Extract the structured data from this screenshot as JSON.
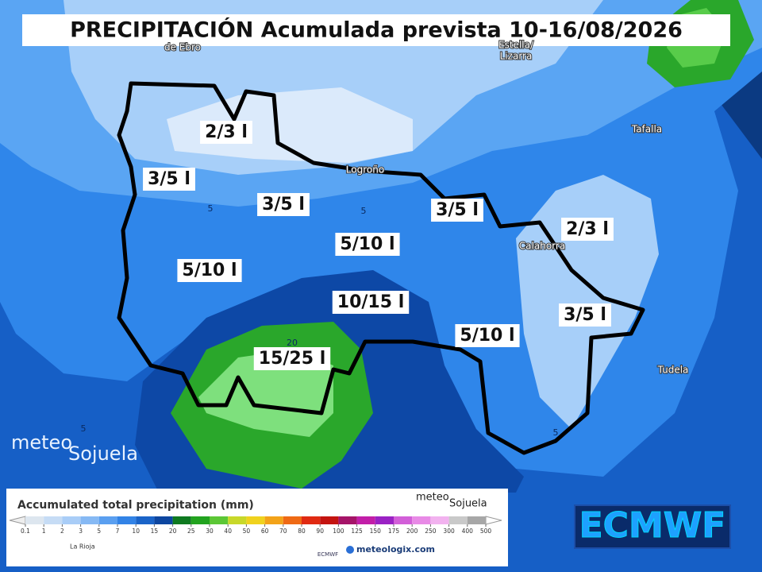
{
  "title": "PRECIPITACIÓN Acumulada prevista 10-16/08/2026",
  "places": [
    "de Ebro",
    "Estella/",
    "Lizarra",
    "Tafalla",
    "Logroño",
    "Calahorra",
    "Tudela"
  ],
  "zone_labels": [
    "2/3 l",
    "3/5 l",
    "3/5 l",
    "3/5 l",
    "2/3 l",
    "5/10 l",
    "5/10 l",
    "10/15 l",
    "5/10 l",
    "15/25 l",
    "3/5 l"
  ],
  "contour_labels": [
    5,
    5,
    20,
    5,
    5
  ],
  "brand": {
    "part1": "meteo",
    "part2": "Sojuela"
  },
  "model": "ECMWF",
  "legend": {
    "title": "Accumulated total precipitation (mm)",
    "ticks": [
      0.1,
      1,
      2,
      3,
      5,
      7,
      10,
      15,
      20,
      25,
      30,
      40,
      50,
      60,
      70,
      80,
      90,
      100,
      125,
      150,
      175,
      200,
      250,
      300,
      400,
      500
    ],
    "colors": [
      "#dde6ef",
      "#c6dcf5",
      "#a9cdf7",
      "#86b9f4",
      "#5a9ff0",
      "#3283e6",
      "#1a64c8",
      "#0d46a0",
      "#0f7a20",
      "#22a31f",
      "#5cc736",
      "#c8d82a",
      "#f0d21e",
      "#f3a319",
      "#ef6a15",
      "#e02a12",
      "#c41410",
      "#a51468",
      "#c21ea8",
      "#9a22c4",
      "#d25fd8",
      "#e88ae6",
      "#f2b2ef",
      "#c9c9c9",
      "#a7a7a7"
    ],
    "region": "La Rioja",
    "source": "meteologix.com",
    "model_small": "ECMWF",
    "brand1": "meteo",
    "brand2": "Sojuela"
  }
}
